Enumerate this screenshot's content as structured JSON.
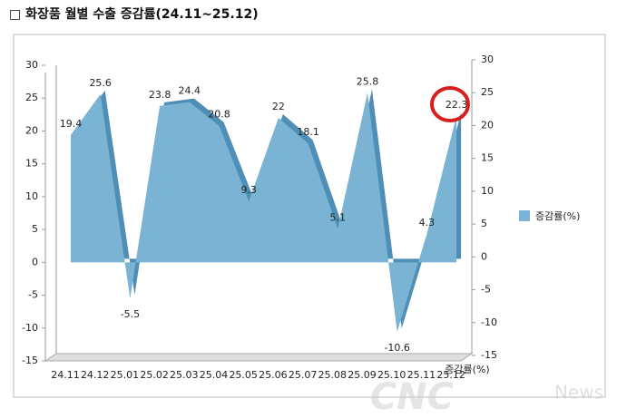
{
  "chart_data": {
    "type": "area",
    "title": "□ 화장품 월별 수출 증감률(24.11~25.12)",
    "categories": [
      "24.11",
      "24.12",
      "25.01",
      "25.02",
      "25.03",
      "25.04",
      "25.05",
      "25.06",
      "25.07",
      "25.08",
      "25.09",
      "25.10",
      "25.11",
      "25.12"
    ],
    "series": [
      {
        "name": "증감률(%)",
        "color": "#7ab3d3",
        "values": [
          19.4,
          25.6,
          -5.5,
          23.8,
          24.4,
          20.8,
          9.3,
          22,
          18.1,
          5.1,
          25.8,
          -10.6,
          4.3,
          22.3
        ]
      }
    ],
    "ylim": [
      -15,
      30
    ],
    "yticks": [
      -15,
      -10,
      -5,
      0,
      5,
      10,
      15,
      20,
      25,
      30
    ],
    "y2lim": [
      -15,
      30
    ],
    "y2ticks": [
      -15,
      -10,
      -5,
      0,
      5,
      10,
      15,
      20,
      25,
      30
    ],
    "grid": false,
    "legend": "right",
    "watermark": [
      "CNC",
      "News"
    ]
  }
}
